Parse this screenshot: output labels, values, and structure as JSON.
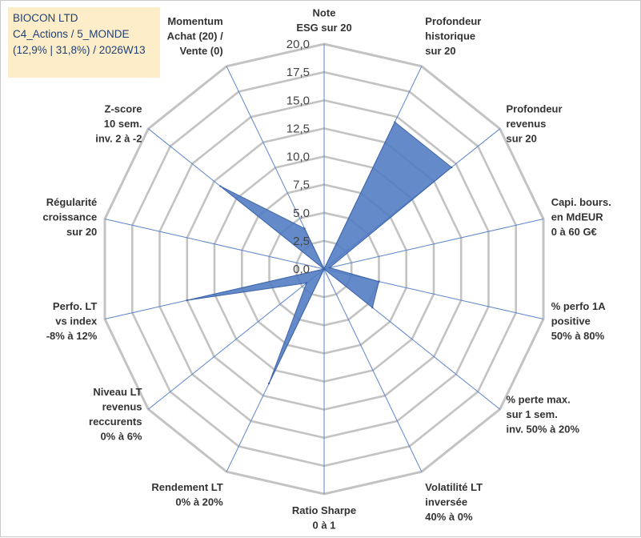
{
  "header": {
    "lines": [
      "BIOCON LTD",
      "C4_Actions / 5_MONDE",
      "(12,9% | 31,8%) / 2026W13"
    ]
  },
  "colors": {
    "fill": "#4f7ac1",
    "stroke": "#3d64a8",
    "grid": "#c3c3c3",
    "spoke": "#5b85c9"
  },
  "chart_data": {
    "type": "radar",
    "title": "BIOCON LTD",
    "range": [
      0,
      20
    ],
    "ticks": [
      "0,0",
      "2,5",
      "5,0",
      "7,5",
      "10,0",
      "12,5",
      "15,0",
      "17,5",
      "20,0"
    ],
    "grid_levels": 8,
    "axes": [
      {
        "lines": [
          "Note",
          "ESG sur 20"
        ],
        "value": 0
      },
      {
        "lines": [
          "Profondeur",
          "historique",
          "sur 20"
        ],
        "value": 14.5
      },
      {
        "lines": [
          "Profondeur",
          "revenus",
          "sur 20"
        ],
        "value": 14.5
      },
      {
        "lines": [
          "Capi. bours.",
          "en MdEUR",
          "0 à 60 G€"
        ],
        "value": 0.5
      },
      {
        "lines": [
          "% perfo 1A",
          "positive",
          "50% à 80%"
        ],
        "value": 5
      },
      {
        "lines": [
          "% perte max.",
          "sur 1 sem.",
          "inv. 50% à 20%"
        ],
        "value": 5.5
      },
      {
        "lines": [
          "Volatilité LT",
          "inversée",
          "40% à 0%"
        ],
        "value": 0
      },
      {
        "lines": [
          "Ratio Sharpe",
          "0 à 1"
        ],
        "value": 0
      },
      {
        "lines": [
          "Rendement LT",
          "0% à 20%"
        ],
        "value": 11.3
      },
      {
        "lines": [
          "Niveau LT",
          "revenus",
          "reccurents",
          "0% à 6%"
        ],
        "value": 2
      },
      {
        "lines": [
          "Perfo. LT",
          "vs index",
          "-8% à 12%"
        ],
        "value": 12.5
      },
      {
        "lines": [
          "Régularité",
          "croissance",
          "sur 20"
        ],
        "value": 0
      },
      {
        "lines": [
          "Z-score",
          "10 sem.",
          "inv. 2 à -2"
        ],
        "value": 11.8
      },
      {
        "lines": [
          "Momentum",
          "Achat (20) /",
          "Vente (0)"
        ],
        "value": 4
      }
    ]
  }
}
